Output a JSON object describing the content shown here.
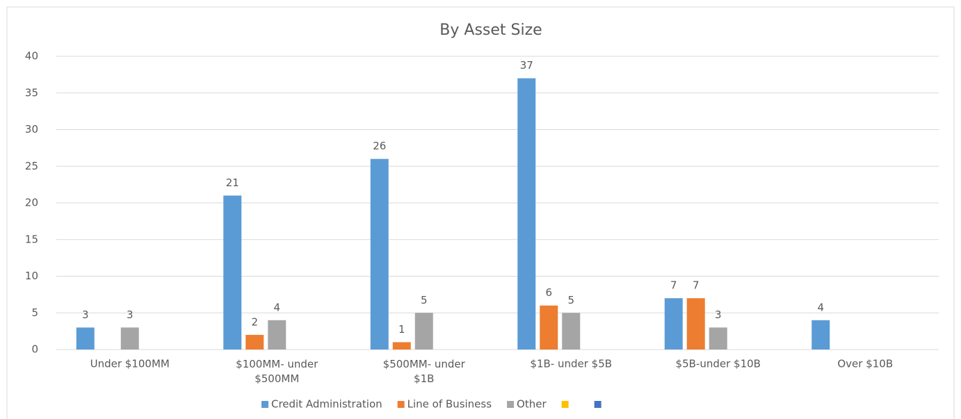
{
  "chart_data": {
    "type": "bar",
    "title": "By Asset Size",
    "categories": [
      "Under $100MM",
      "$100MM- under $500MM",
      "$500MM- under $1B",
      "$1B- under $5B",
      "$5B-under $10B",
      "Over $10B"
    ],
    "series": [
      {
        "name": "Credit Administration",
        "color": "#5b9bd5",
        "values": [
          3,
          21,
          26,
          37,
          7,
          4
        ]
      },
      {
        "name": "Line of Business",
        "color": "#ed7d31",
        "values": [
          null,
          2,
          1,
          6,
          7,
          null
        ]
      },
      {
        "name": "Other",
        "color": "#a5a5a5",
        "values": [
          3,
          4,
          5,
          5,
          3,
          null
        ]
      },
      {
        "color": "#ffc000",
        "values": [
          null,
          null,
          null,
          null,
          null,
          null
        ]
      },
      {
        "color": "#4472c4",
        "values": [
          null,
          null,
          null,
          null,
          null,
          null
        ]
      }
    ],
    "ylim": [
      0,
      40
    ],
    "yticks": [
      0,
      5,
      10,
      15,
      20,
      25,
      30,
      35,
      40
    ],
    "grid": true,
    "legend": "bottom"
  }
}
